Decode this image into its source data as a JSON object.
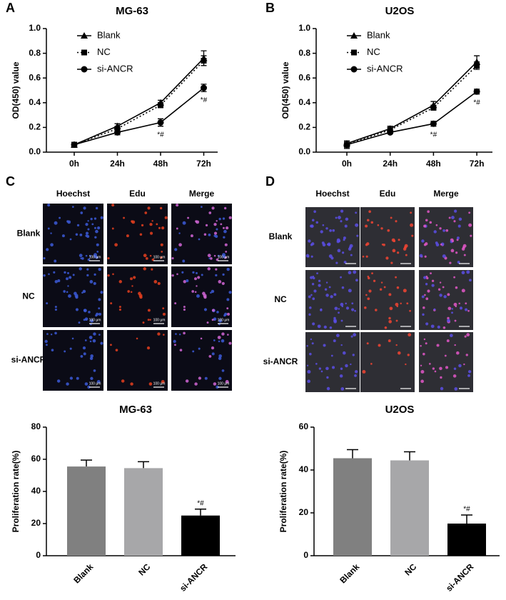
{
  "chart_data": [
    {
      "type": "line",
      "panel": "A",
      "title": "MG-63",
      "ylabel": "OD(450) value",
      "categories": [
        "0h",
        "24h",
        "48h",
        "72h"
      ],
      "ylim": [
        0,
        1
      ],
      "yticks": [
        {
          "value": 0,
          "label": "0.0"
        },
        0.2,
        0.4,
        0.6,
        0.8,
        {
          "value": 1,
          "label": "1.0"
        }
      ],
      "series": [
        {
          "name": "Blank",
          "color": "#000000",
          "marker": "triangle",
          "line_style": "solid",
          "values": [
            0.06,
            0.21,
            0.4,
            0.76
          ],
          "errors": [
            0.02,
            0.02,
            0.02,
            0.06
          ]
        },
        {
          "name": "NC",
          "color": "#000000",
          "marker": "square",
          "line_style": "dotted",
          "values": [
            0.06,
            0.19,
            0.38,
            0.74
          ],
          "errors": [
            0.02,
            0.02,
            0.02,
            0.04
          ]
        },
        {
          "name": "si-ANCR",
          "color": "#000000",
          "marker": "circle",
          "line_style": "solid",
          "values": [
            0.06,
            0.16,
            0.24,
            0.52
          ],
          "errors": [
            0.02,
            0.02,
            0.03,
            0.03
          ],
          "annotations": [
            null,
            null,
            "*#",
            "*#"
          ]
        }
      ]
    },
    {
      "type": "line",
      "panel": "B",
      "title": "U2OS",
      "ylabel": "OD(450) value",
      "categories": [
        "0h",
        "24h",
        "48h",
        "72h"
      ],
      "ylim": [
        0,
        1
      ],
      "yticks": [
        {
          "value": 0,
          "label": "0.0"
        },
        0.2,
        0.4,
        0.6,
        0.8,
        {
          "value": 1,
          "label": "1.0"
        }
      ],
      "series": [
        {
          "name": "Blank",
          "color": "#000000",
          "marker": "triangle",
          "line_style": "solid",
          "values": [
            0.07,
            0.19,
            0.38,
            0.73
          ],
          "errors": [
            0.02,
            0.02,
            0.03,
            0.05
          ]
        },
        {
          "name": "NC",
          "color": "#000000",
          "marker": "square",
          "line_style": "dotted",
          "values": [
            0.06,
            0.18,
            0.36,
            0.7
          ],
          "errors": [
            0.02,
            0.02,
            0.02,
            0.03
          ]
        },
        {
          "name": "si-ANCR",
          "color": "#000000",
          "marker": "circle",
          "line_style": "solid",
          "values": [
            0.06,
            0.16,
            0.23,
            0.49
          ],
          "errors": [
            0.03,
            0.01,
            0.02,
            0.02
          ],
          "annotations": [
            null,
            null,
            "*#",
            "*#"
          ]
        }
      ]
    },
    {
      "type": "bar",
      "title": "MG-63",
      "ylabel": "Proliferation rate(%)",
      "categories": [
        "Blank",
        "NC",
        "si-ANCR"
      ],
      "values": [
        55.5,
        54.5,
        25
      ],
      "errors": [
        4,
        4,
        4
      ],
      "colors": [
        "#808080",
        "#a7a7a9",
        "#000000"
      ],
      "annotations": [
        null,
        null,
        "*#"
      ],
      "ylim": [
        0,
        80
      ],
      "yticks": [
        0,
        20,
        40,
        60,
        80
      ]
    },
    {
      "type": "bar",
      "title": "U2OS",
      "ylabel": "Proliferation rate(%)",
      "categories": [
        "Blank",
        "NC",
        "si-ANCR"
      ],
      "values": [
        45.5,
        44.5,
        15
      ],
      "errors": [
        4,
        4,
        4
      ],
      "colors": [
        "#808080",
        "#a7a7a9",
        "#000000"
      ],
      "annotations": [
        null,
        null,
        "*#"
      ],
      "ylim": [
        0,
        60
      ],
      "yticks": [
        0,
        20,
        40,
        60
      ]
    }
  ],
  "image_panels": [
    {
      "letter": "C",
      "columns": [
        "Hoechst",
        "Edu",
        "Merge"
      ],
      "rows": [
        "Blank",
        "NC",
        "si-ANCR"
      ],
      "scale_label": "100 μm"
    },
    {
      "letter": "D",
      "columns": [
        "Hoechst",
        "Edu",
        "Merge"
      ],
      "rows": [
        "Blank",
        "NC",
        "si-ANCR"
      ]
    }
  ]
}
